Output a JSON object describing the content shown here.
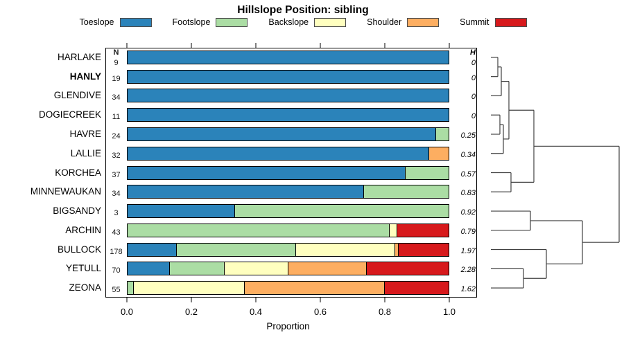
{
  "title": "Hillslope Position: sibling",
  "legend": {
    "items": [
      {
        "label": "Toeslope",
        "color": "#2B83BA"
      },
      {
        "label": "Footslope",
        "color": "#ABDDA4"
      },
      {
        "label": "Backslope",
        "color": "#FFFFBF"
      },
      {
        "label": "Shoulder",
        "color": "#FDAE61"
      },
      {
        "label": "Summit",
        "color": "#D7191C"
      }
    ]
  },
  "columns": {
    "n_header": "N",
    "h_header": "H"
  },
  "axis": {
    "label": "Proportion",
    "tick_labels": [
      "0.0",
      "0.2",
      "0.4",
      "0.6",
      "0.8",
      "1.0"
    ]
  },
  "chart_data": {
    "type": "bar",
    "variant": "horizontal-stacked-with-dendrogram",
    "title": "Hillslope Position: sibling",
    "xlabel": "Proportion",
    "xlim": [
      0,
      1
    ],
    "x_ticks": [
      0,
      0.2,
      0.4,
      0.6,
      0.8,
      1.0
    ],
    "legend_position": "top",
    "categories": [
      "Toeslope",
      "Footslope",
      "Backslope",
      "Shoulder",
      "Summit"
    ],
    "palette": [
      "#2B83BA",
      "#ABDDA4",
      "#FFFFBF",
      "#FDAE61",
      "#D7191C"
    ],
    "rows": [
      {
        "label": "HARLAKE",
        "bold": false,
        "n": 9,
        "h": "0",
        "values": [
          1,
          0,
          0,
          0,
          0
        ]
      },
      {
        "label": "HANLY",
        "bold": true,
        "n": 19,
        "h": "0",
        "values": [
          1,
          0,
          0,
          0,
          0
        ]
      },
      {
        "label": "GLENDIVE",
        "bold": false,
        "n": 34,
        "h": "0",
        "values": [
          1,
          0,
          0,
          0,
          0
        ]
      },
      {
        "label": "DOGIECREEK",
        "bold": false,
        "n": 11,
        "h": "0",
        "values": [
          1,
          0,
          0,
          0,
          0
        ]
      },
      {
        "label": "HAVRE",
        "bold": false,
        "n": 24,
        "h": "0.25",
        "values": [
          0.958,
          0.042,
          0,
          0,
          0
        ]
      },
      {
        "label": "LALLIE",
        "bold": false,
        "n": 32,
        "h": "0.34",
        "values": [
          0.938,
          0,
          0,
          0.062,
          0
        ]
      },
      {
        "label": "KORCHEA",
        "bold": false,
        "n": 37,
        "h": "0.57",
        "values": [
          0.865,
          0.135,
          0,
          0,
          0
        ]
      },
      {
        "label": "MINNEWAUKAN",
        "bold": false,
        "n": 34,
        "h": "0.83",
        "values": [
          0.735,
          0.265,
          0,
          0,
          0
        ]
      },
      {
        "label": "BIGSANDY",
        "bold": false,
        "n": 3,
        "h": "0.92",
        "values": [
          0.333,
          0.667,
          0,
          0,
          0
        ]
      },
      {
        "label": "ARCHIN",
        "bold": false,
        "n": 43,
        "h": "0.79",
        "values": [
          0,
          0.814,
          0.023,
          0,
          0.163
        ]
      },
      {
        "label": "BULLOCK",
        "bold": false,
        "n": 178,
        "h": "1.97",
        "values": [
          0.152,
          0.371,
          0.309,
          0.011,
          0.157
        ]
      },
      {
        "label": "YETULL",
        "bold": false,
        "n": 70,
        "h": "2.28",
        "values": [
          0.129,
          0.171,
          0.2,
          0.243,
          0.257
        ]
      },
      {
        "label": "ZEONA",
        "bold": false,
        "n": 55,
        "h": "1.62",
        "values": [
          0,
          0.018,
          0.345,
          0.437,
          0.2
        ]
      }
    ],
    "dendrogram": {
      "leaf_x": 708,
      "merges": [
        {
          "id": "m1",
          "x": 718,
          "children": [
            "L0",
            "L1"
          ]
        },
        {
          "id": "m2",
          "x": 723,
          "children": [
            "m1",
            "L2"
          ]
        },
        {
          "id": "m3",
          "x": 721,
          "children": [
            "L3",
            "L4"
          ]
        },
        {
          "id": "m4",
          "x": 726,
          "children": [
            "m3",
            "L5"
          ]
        },
        {
          "id": "m5",
          "x": 734,
          "children": [
            "m2",
            "m4"
          ]
        },
        {
          "id": "m6",
          "x": 737,
          "children": [
            "L6",
            "L7"
          ]
        },
        {
          "id": "m7",
          "x": 770,
          "children": [
            "m5",
            "m6"
          ]
        },
        {
          "id": "m8",
          "x": 765,
          "children": [
            "L8",
            "L9"
          ]
        },
        {
          "id": "m9",
          "x": 755,
          "children": [
            "L11",
            "L12"
          ]
        },
        {
          "id": "m10",
          "x": 788,
          "children": [
            "L10",
            "m9"
          ]
        },
        {
          "id": "m11",
          "x": 840,
          "children": [
            "m8",
            "m10"
          ]
        },
        {
          "id": "m12",
          "x": 893,
          "children": [
            "m7",
            "m11"
          ]
        }
      ]
    }
  }
}
